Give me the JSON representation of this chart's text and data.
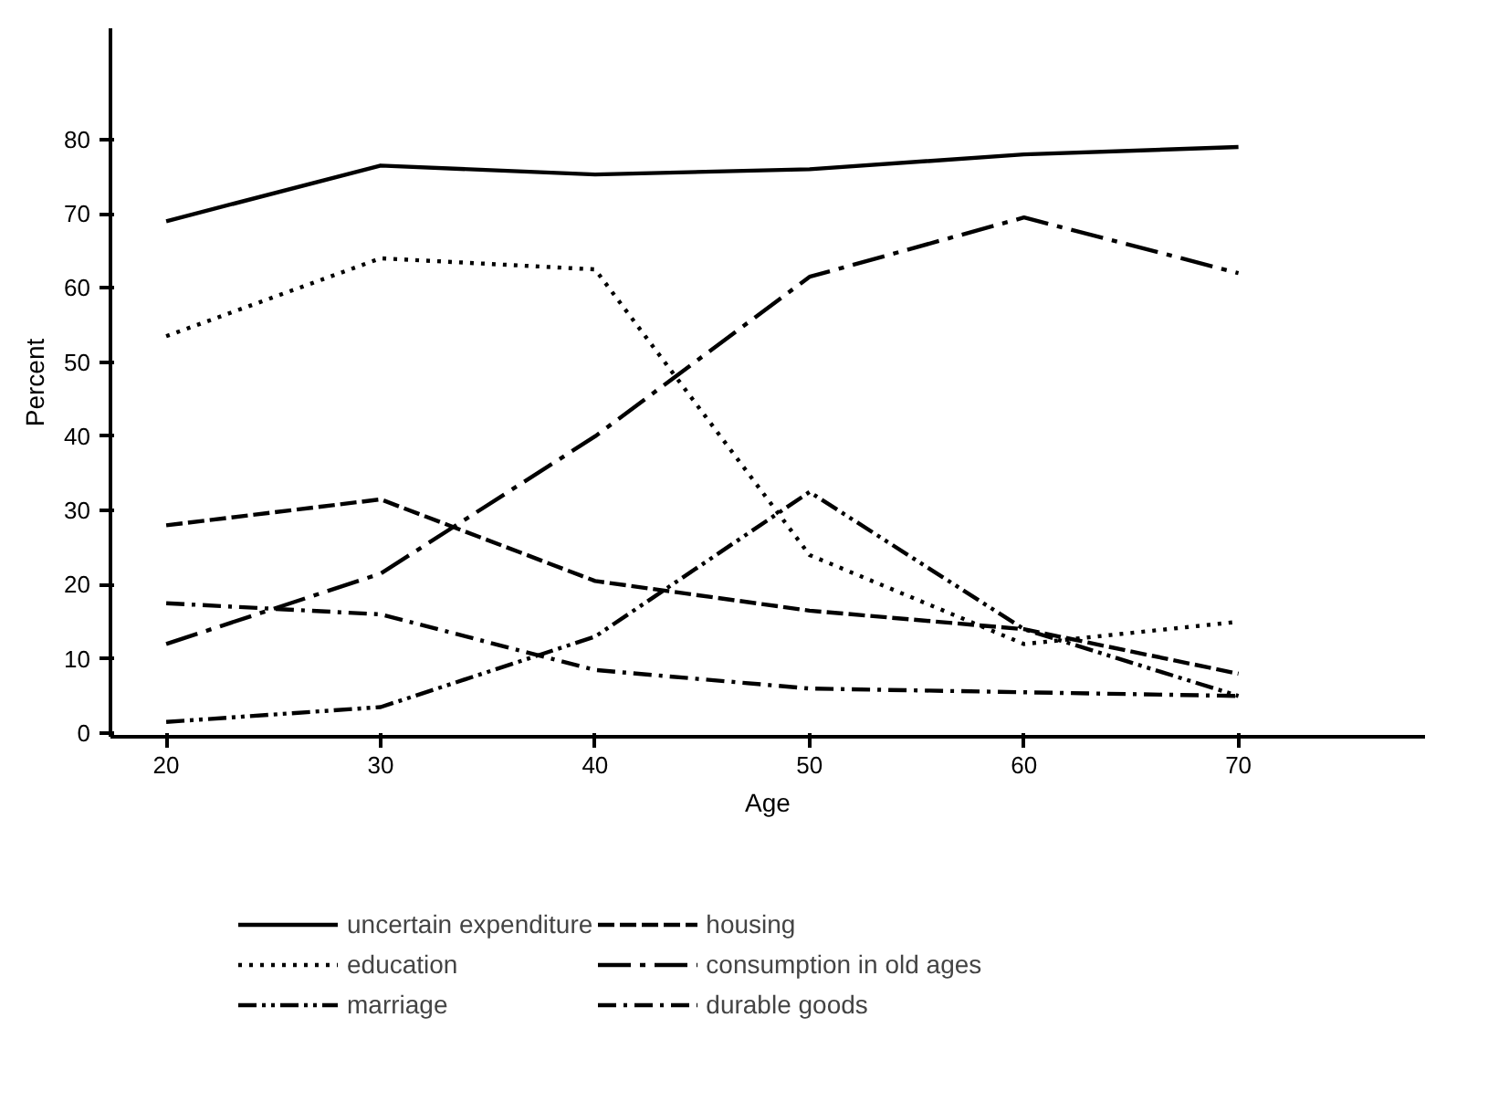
{
  "chart_data": {
    "type": "line",
    "xlabel": "Age",
    "ylabel": "Percent",
    "x": [
      20,
      30,
      40,
      50,
      60,
      70
    ],
    "xlim": [
      17.4,
      78.7
    ],
    "xticks": [
      20,
      30,
      40,
      50,
      60,
      70
    ],
    "ylim": [
      -0.5,
      95
    ],
    "yticks": [
      0,
      10,
      20,
      30,
      40,
      50,
      60,
      70,
      80
    ],
    "grid": false,
    "legend": "bottom",
    "marker": "none",
    "series": [
      {
        "name": "uncertain expenditure",
        "color": "#000000",
        "line_style": "solid",
        "values": [
          69,
          76.5,
          75.3,
          76,
          78,
          79
        ]
      },
      {
        "name": "education",
        "color": "#000000",
        "line_style": "dotted",
        "values": [
          53.5,
          64,
          62.5,
          24,
          12,
          15
        ]
      },
      {
        "name": "marriage",
        "color": "#000000",
        "line_style": "dashdotdot",
        "values": [
          1.5,
          3.5,
          13,
          32.5,
          14,
          5
        ]
      },
      {
        "name": "housing",
        "color": "#000000",
        "line_style": "dashed",
        "values": [
          28,
          31.5,
          20.5,
          16.5,
          14,
          8
        ]
      },
      {
        "name": "consumption in old ages",
        "color": "#000000",
        "line_style": "longdashdot",
        "values": [
          12,
          21.5,
          40,
          61.5,
          69.5,
          62
        ]
      },
      {
        "name": "durable goods",
        "color": "#000000",
        "line_style": "dashdot",
        "values": [
          17.5,
          16,
          8.5,
          6,
          5.5,
          5
        ]
      }
    ]
  }
}
